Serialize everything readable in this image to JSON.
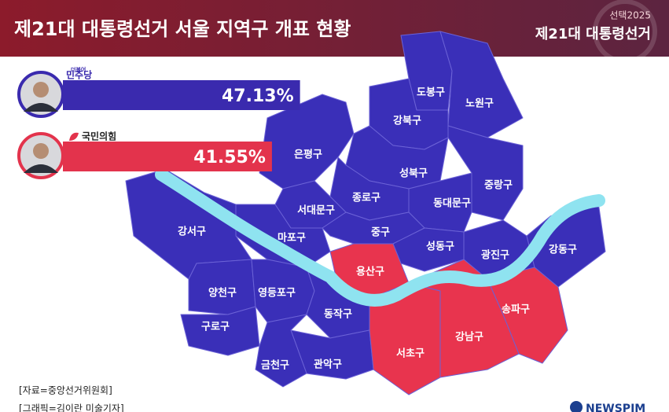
{
  "header": {
    "title": "제21대 대통령선거 서울 지역구 개표 현황",
    "logo_top": "선택2025",
    "logo_main": "제21대 대통령선거"
  },
  "candidates": [
    {
      "party_prefix": "더불어",
      "party": "민주당",
      "value": 47.13,
      "value_label": "47.13%",
      "color": "#3a2aae"
    },
    {
      "party": "국민의힘",
      "value": 41.55,
      "value_label": "41.55%",
      "color": "#e3334c"
    }
  ],
  "districts": [
    {
      "name": "도봉구",
      "color": "#3a2fb8"
    },
    {
      "name": "노원구",
      "color": "#3a2fb8"
    },
    {
      "name": "강북구",
      "color": "#3a2fb8"
    },
    {
      "name": "은평구",
      "color": "#3a2fb8"
    },
    {
      "name": "성북구",
      "color": "#3a2fb8"
    },
    {
      "name": "중랑구",
      "color": "#3a2fb8"
    },
    {
      "name": "동대문구",
      "color": "#3a2fb8"
    },
    {
      "name": "종로구",
      "color": "#3a2fb8"
    },
    {
      "name": "서대문구",
      "color": "#3a2fb8"
    },
    {
      "name": "마포구",
      "color": "#3a2fb8"
    },
    {
      "name": "중구",
      "color": "#3a2fb8"
    },
    {
      "name": "성동구",
      "color": "#3a2fb8"
    },
    {
      "name": "광진구",
      "color": "#3a2fb8"
    },
    {
      "name": "강동구",
      "color": "#3a2fb8"
    },
    {
      "name": "강서구",
      "color": "#3a2fb8"
    },
    {
      "name": "양천구",
      "color": "#3a2fb8"
    },
    {
      "name": "구로구",
      "color": "#3a2fb8"
    },
    {
      "name": "영등포구",
      "color": "#3a2fb8"
    },
    {
      "name": "용산구",
      "color": "#e8344e"
    },
    {
      "name": "동작구",
      "color": "#3a2fb8"
    },
    {
      "name": "관악구",
      "color": "#3a2fb8"
    },
    {
      "name": "금천구",
      "color": "#3a2fb8"
    },
    {
      "name": "서초구",
      "color": "#e8344e"
    },
    {
      "name": "강남구",
      "color": "#e8344e"
    },
    {
      "name": "송파구",
      "color": "#e8344e"
    }
  ],
  "footer": {
    "source": "[자료=중앙선거위원회]",
    "credit": "[그래픽=김이란 미술기자]",
    "brand": "NEWSPIM"
  }
}
